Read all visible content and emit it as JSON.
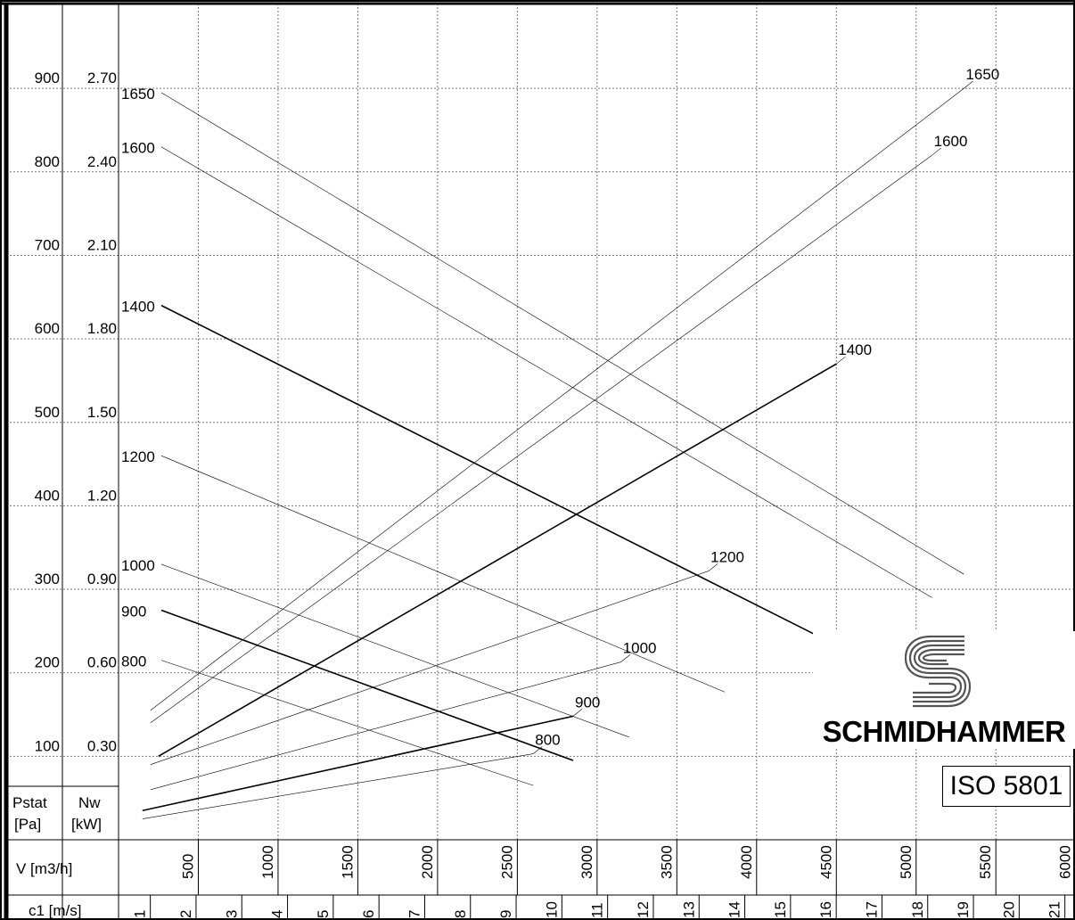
{
  "brand": {
    "name": "SCHMIDHAMMER",
    "standard": "ISO 5801",
    "logo_icon": "schmidhammer-s-logo-icon"
  },
  "axes": {
    "pstat_label": [
      "Pstat",
      "[Pa]"
    ],
    "nw_label": [
      "Nw",
      "[kW]"
    ],
    "v_label": "V [m3/h]",
    "c1_label": "c1 [m/s]"
  },
  "chart_data": {
    "type": "line",
    "x_axis": {
      "label": "V [m3/h]",
      "range": [
        0,
        6000
      ],
      "ticks": [
        500,
        1000,
        1500,
        2000,
        2500,
        3000,
        3500,
        4000,
        4500,
        5000,
        5500,
        6000
      ]
    },
    "x2_axis": {
      "label": "c1 [m/s]",
      "ticks": [
        1,
        2,
        3,
        4,
        5,
        6,
        7,
        8,
        9,
        10,
        11,
        12,
        13,
        14,
        15,
        16,
        17,
        18,
        19,
        20,
        21
      ]
    },
    "y_axis": {
      "label": "Pstat [Pa]",
      "range": [
        0,
        950
      ],
      "ticks": [
        100,
        200,
        300,
        400,
        500,
        600,
        700,
        800,
        900
      ]
    },
    "y2_axis": {
      "label": "Nw [kW]",
      "ticks": [
        "0.30",
        "0.60",
        "0.90",
        "1.20",
        "1.50",
        "1.80",
        "2.10",
        "2.40",
        "2.70"
      ]
    },
    "grid": true,
    "pressure_curves": [
      {
        "name": "800",
        "points": [
          [
            0,
            215
          ],
          [
            2600,
            65
          ]
        ]
      },
      {
        "name": "900",
        "points": [
          [
            0,
            275
          ],
          [
            2850,
            95
          ]
        ]
      },
      {
        "name": "1000",
        "points": [
          [
            0,
            330
          ],
          [
            3200,
            123
          ]
        ]
      },
      {
        "name": "1200",
        "points": [
          [
            0,
            460
          ],
          [
            3800,
            177
          ]
        ]
      },
      {
        "name": "1400",
        "points": [
          [
            0,
            640
          ],
          [
            4500,
            233
          ]
        ]
      },
      {
        "name": "1600",
        "points": [
          [
            0,
            830
          ],
          [
            5100,
            290
          ]
        ]
      },
      {
        "name": "1650",
        "points": [
          [
            0,
            895
          ],
          [
            5300,
            318
          ]
        ]
      }
    ],
    "power_curves": [
      {
        "name": "800",
        "points": [
          [
            150,
            25
          ],
          [
            2600,
            103
          ]
        ]
      },
      {
        "name": "900",
        "points": [
          [
            150,
            35
          ],
          [
            2850,
            148
          ]
        ]
      },
      {
        "name": "1000",
        "points": [
          [
            200,
            60
          ],
          [
            3150,
            213
          ]
        ]
      },
      {
        "name": "1200",
        "points": [
          [
            200,
            90
          ],
          [
            3700,
            322
          ]
        ]
      },
      {
        "name": "1400",
        "points": [
          [
            250,
            100
          ],
          [
            4500,
            570
          ]
        ]
      },
      {
        "name": "1600",
        "points": [
          [
            200,
            140
          ],
          [
            5100,
            820
          ]
        ]
      },
      {
        "name": "1650",
        "points": [
          [
            200,
            155
          ],
          [
            5300,
            900
          ]
        ]
      }
    ]
  }
}
